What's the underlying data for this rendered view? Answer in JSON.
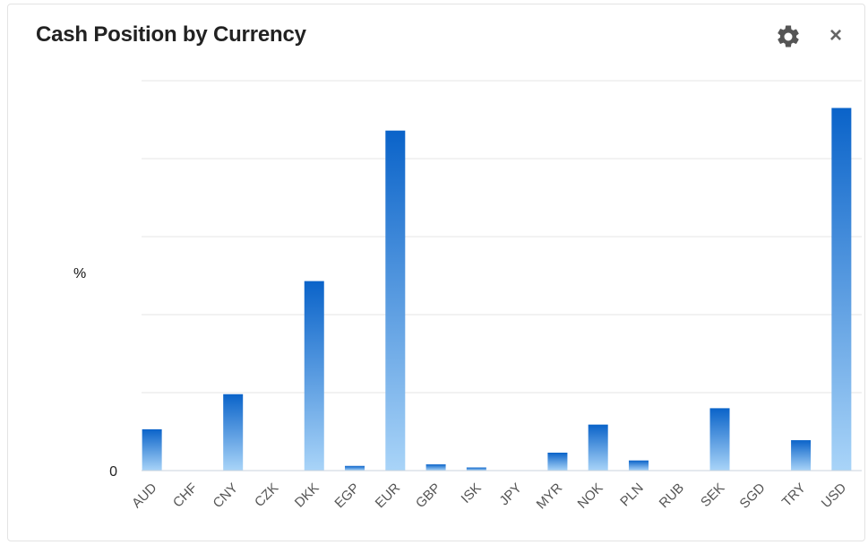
{
  "widget": {
    "title": "Cash Position by Currency",
    "settings_icon": "gear-icon",
    "close_icon": "close-icon",
    "close_glyph": "×"
  },
  "chart_data": {
    "type": "bar",
    "title": "Cash Position by Currency",
    "xlabel": "",
    "ylabel": "%",
    "categories": [
      "AUD",
      "CHF",
      "CNY",
      "CZK",
      "DKK",
      "EGP",
      "EUR",
      "GBP",
      "ISK",
      "JPY",
      "MYR",
      "NOK",
      "PLN",
      "RUB",
      "SEK",
      "SGD",
      "TRY",
      "USD"
    ],
    "values": [
      5.3,
      0,
      9.8,
      0,
      24.3,
      0.6,
      43.6,
      0.8,
      0.4,
      0,
      2.3,
      5.9,
      1.3,
      0,
      8.0,
      0,
      3.9,
      46.5
    ],
    "ylim": [
      0,
      50
    ],
    "y_tick_labels": [
      "0"
    ],
    "grid": true,
    "bar_color_top": "#0a63c9",
    "bar_color_bottom": "#a9d4f8"
  }
}
